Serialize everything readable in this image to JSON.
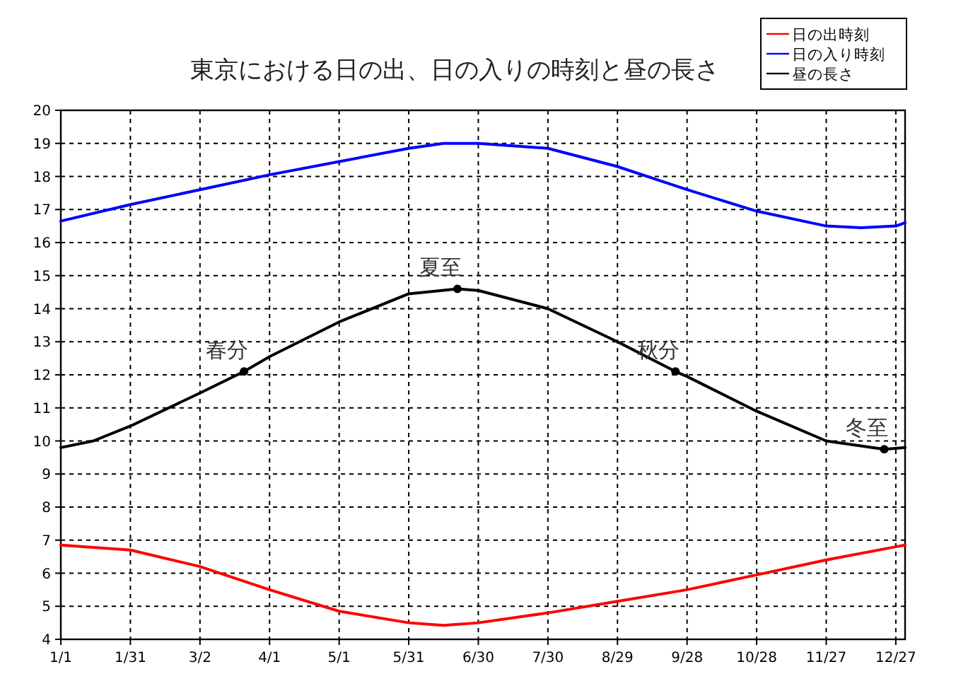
{
  "chart_data": {
    "type": "line",
    "title": "東京における日の出、日の入りの時刻と昼の長さ",
    "xlim": [
      "--01-01",
      "--12-31"
    ],
    "xticks": [
      {
        "value": "--01-01",
        "label": "1/1"
      },
      {
        "value": "--01-31",
        "label": "1/31"
      },
      {
        "value": "--03-02",
        "label": "3/2"
      },
      {
        "value": "--04-01",
        "label": "4/1"
      },
      {
        "value": "--05-01",
        "label": "5/1"
      },
      {
        "value": "--05-31",
        "label": "5/31"
      },
      {
        "value": "--06-30",
        "label": "6/30"
      },
      {
        "value": "--07-30",
        "label": "7/30"
      },
      {
        "value": "--08-29",
        "label": "8/29"
      },
      {
        "value": "--09-28",
        "label": "9/28"
      },
      {
        "value": "--10-28",
        "label": "10/28"
      },
      {
        "value": "--11-27",
        "label": "11/27"
      },
      {
        "value": "--12-27",
        "label": "12/27"
      }
    ],
    "ylim": [
      4,
      20
    ],
    "yticks": [
      4,
      5,
      6,
      7,
      8,
      9,
      10,
      11,
      12,
      13,
      14,
      15,
      16,
      17,
      18,
      19,
      20
    ],
    "grid": true,
    "legend": "top right",
    "line_style": "solid",
    "series": [
      {
        "name": "日の出時刻",
        "color": "#ff0000",
        "x": [
          "--01-01",
          "--01-31",
          "--03-02",
          "--04-01",
          "--05-01",
          "--05-31",
          "--06-15",
          "--06-30",
          "--07-30",
          "--08-29",
          "--09-28",
          "--10-28",
          "--11-27",
          "--12-27",
          "--12-31"
        ],
        "values": [
          6.85,
          6.7,
          6.2,
          5.5,
          4.85,
          4.5,
          4.42,
          4.5,
          4.8,
          5.15,
          5.5,
          5.95,
          6.4,
          6.8,
          6.85
        ]
      },
      {
        "name": "日の入り時刻",
        "color": "#0000ff",
        "x": [
          "--01-01",
          "--01-31",
          "--03-02",
          "--04-01",
          "--05-01",
          "--05-31",
          "--06-15",
          "--06-30",
          "--07-30",
          "--08-29",
          "--09-28",
          "--10-28",
          "--11-27",
          "--12-12",
          "--12-27",
          "--12-31"
        ],
        "values": [
          16.65,
          17.15,
          17.6,
          18.05,
          18.45,
          18.85,
          19.0,
          19.0,
          18.85,
          18.3,
          17.6,
          16.95,
          16.5,
          16.45,
          16.5,
          16.6
        ]
      },
      {
        "name": "昼の長さ",
        "color": "#000000",
        "x": [
          "--01-01",
          "--01-15",
          "--01-31",
          "--03-02",
          "--03-21",
          "--04-01",
          "--05-01",
          "--05-31",
          "--06-21",
          "--06-30",
          "--07-30",
          "--08-29",
          "--09-23",
          "--09-28",
          "--10-28",
          "--11-27",
          "--12-22",
          "--12-31"
        ],
        "values": [
          9.8,
          10.0,
          10.45,
          11.45,
          12.1,
          12.55,
          13.6,
          14.45,
          14.6,
          14.55,
          14.0,
          13.0,
          12.1,
          11.95,
          10.9,
          10.0,
          9.75,
          9.8
        ]
      }
    ],
    "annotations": [
      {
        "text": "春分",
        "x": "--03-21",
        "y": 12.1
      },
      {
        "text": "夏至",
        "x": "--06-21",
        "y": 14.6
      },
      {
        "text": "秋分",
        "x": "--09-23",
        "y": 12.1
      },
      {
        "text": "冬至",
        "x": "--12-22",
        "y": 9.75
      }
    ]
  }
}
